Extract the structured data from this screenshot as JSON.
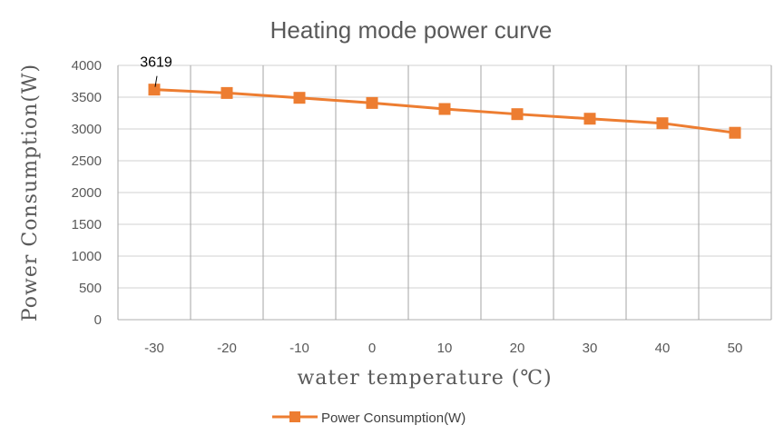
{
  "chart_data": {
    "type": "line",
    "title": "Heating mode power curve",
    "xlabel": "water temperature (℃)",
    "ylabel": "Power Consumption(W)",
    "categories": [
      "-30",
      "-20",
      "-10",
      "0",
      "10",
      "20",
      "30",
      "40",
      "50"
    ],
    "series": [
      {
        "name": "Power Consumption(W)",
        "values": [
          3619,
          3566,
          3490,
          3409,
          3314,
          3233,
          3161,
          3090,
          2940
        ],
        "color": "#ED7D31",
        "marker": "square"
      }
    ],
    "data_labels": [
      {
        "index": 0,
        "text": "3619"
      }
    ],
    "ylim": [
      0,
      4000
    ],
    "yticks": [
      "0",
      "500",
      "1000",
      "1500",
      "2000",
      "2500",
      "3000",
      "3500",
      "4000"
    ],
    "grid": true,
    "legend_position": "bottom"
  }
}
